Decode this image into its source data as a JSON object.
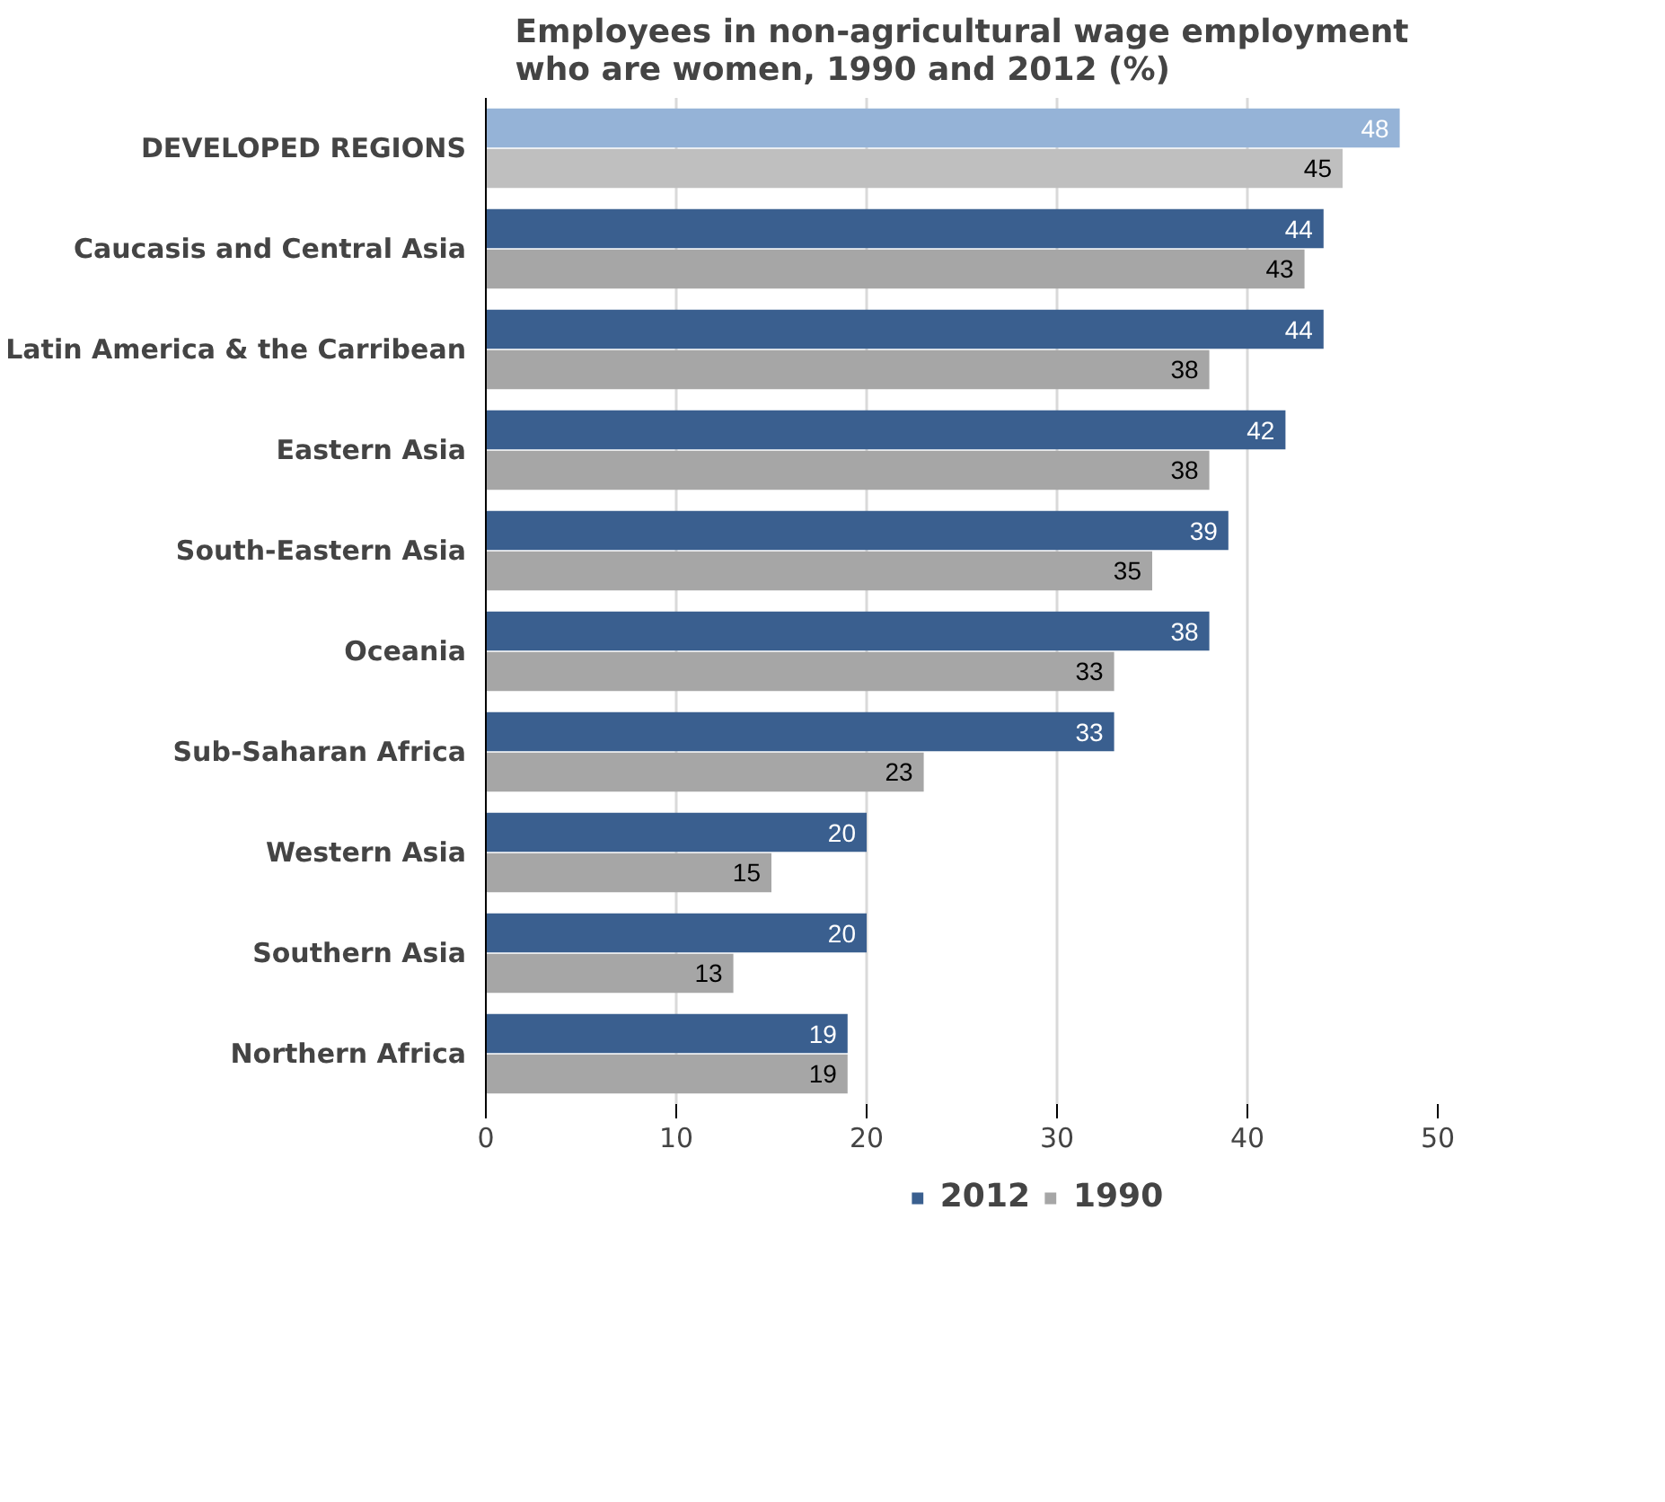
{
  "chart_data": {
    "type": "bar",
    "orientation": "horizontal",
    "title": "Employees in non-agricultural wage employment who are women, 1990 and 2012 (%)",
    "categories": [
      "DEVELOPED REGIONS",
      "Caucasis and Central Asia",
      "Latin America & the Carribean",
      "Eastern Asia",
      "South-Eastern Asia",
      "Oceania",
      "Sub-Saharan Africa",
      "Western Asia",
      "Southern Asia",
      "Northern Africa"
    ],
    "series": [
      {
        "name": "2012",
        "color": "#3a5f8f",
        "colors": [
          "#95b3d7",
          "#3a5f8f",
          "#3a5f8f",
          "#3a5f8f",
          "#3a5f8f",
          "#3a5f8f",
          "#3a5f8f",
          "#3a5f8f",
          "#3a5f8f",
          "#3a5f8f"
        ],
        "values": [
          48,
          44,
          44,
          42,
          39,
          38,
          33,
          20,
          20,
          19
        ]
      },
      {
        "name": "1990",
        "color": "#a6a6a6",
        "colors": [
          "#bfbfbf",
          "#a6a6a6",
          "#a6a6a6",
          "#a6a6a6",
          "#a6a6a6",
          "#a6a6a6",
          "#a6a6a6",
          "#a6a6a6",
          "#a6a6a6",
          "#a6a6a6"
        ],
        "values": [
          45,
          43,
          38,
          38,
          35,
          33,
          23,
          15,
          13,
          19
        ]
      }
    ],
    "xlim": [
      0,
      50
    ],
    "xticks": [
      0,
      10,
      20,
      30,
      40,
      50
    ],
    "grid": "x",
    "legend": "bottom",
    "data_labels": true
  }
}
